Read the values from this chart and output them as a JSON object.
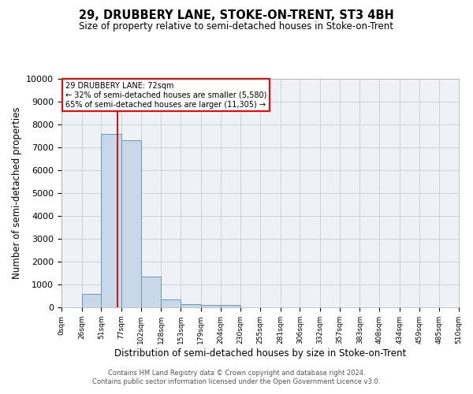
{
  "title": "29, DRUBBERY LANE, STOKE-ON-TRENT, ST3 4BH",
  "subtitle": "Size of property relative to semi-detached houses in Stoke-on-Trent",
  "xlabel": "Distribution of semi-detached houses by size in Stoke-on-Trent",
  "ylabel": "Number of semi-detached properties",
  "footnote1": "Contains HM Land Registry data © Crown copyright and database right 2024.",
  "footnote2": "Contains public sector information licensed under the Open Government Licence v3.0.",
  "bin_edges": [
    0,
    26,
    51,
    77,
    102,
    128,
    153,
    179,
    204,
    230,
    255,
    281,
    306,
    332,
    357,
    383,
    408,
    434,
    459,
    485,
    510
  ],
  "bin_labels": [
    "0sqm",
    "26sqm",
    "51sqm",
    "77sqm",
    "102sqm",
    "128sqm",
    "153sqm",
    "179sqm",
    "204sqm",
    "230sqm",
    "255sqm",
    "281sqm",
    "306sqm",
    "332sqm",
    "357sqm",
    "383sqm",
    "408sqm",
    "434sqm",
    "459sqm",
    "485sqm",
    "510sqm"
  ],
  "bar_heights": [
    0,
    600,
    7600,
    7300,
    1350,
    330,
    150,
    120,
    100,
    0,
    0,
    0,
    0,
    0,
    0,
    0,
    0,
    0,
    0,
    0
  ],
  "bar_color": "#c8d8e8",
  "bar_edge_color": "#6699bb",
  "grid_color": "#cccccc",
  "bg_color": "#eef2f6",
  "property_size": 72,
  "red_line_color": "#cc0000",
  "annotation_text_line1": "29 DRUBBERY LANE: 72sqm",
  "annotation_text_line2": "← 32% of semi-detached houses are smaller (5,580)",
  "annotation_text_line3": "65% of semi-detached houses are larger (11,305) →",
  "ylim": [
    0,
    10000
  ],
  "yticks": [
    0,
    1000,
    2000,
    3000,
    4000,
    5000,
    6000,
    7000,
    8000,
    9000,
    10000
  ]
}
